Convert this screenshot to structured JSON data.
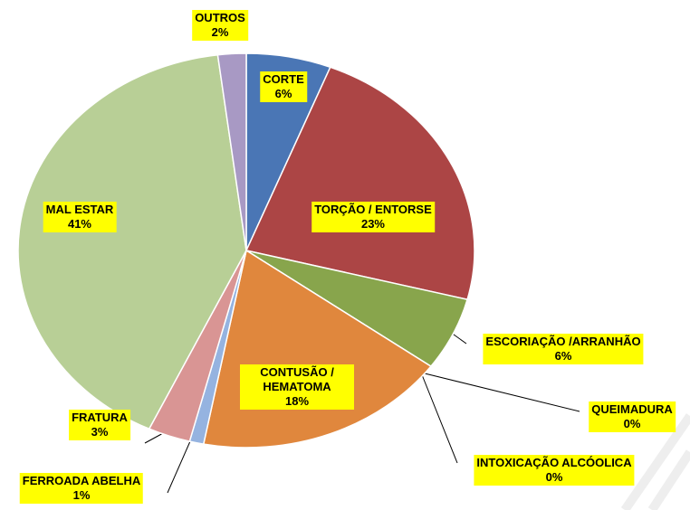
{
  "chart_data": {
    "type": "pie",
    "categories": [
      "CORTE",
      "TORÇÃO / ENTORSE",
      "ESCORIAÇÃO /ARRANHÃO",
      "QUEIMADURA",
      "INTOXICAÇÃO ALCÓOLICA",
      "CONTUSÃO / HEMATOMA",
      "FERROADA ABELHA",
      "FRATURA",
      "MAL ESTAR",
      "OUTROS"
    ],
    "values": [
      6,
      23,
      6,
      0,
      0,
      18,
      1,
      3,
      41,
      2
    ],
    "value_labels": [
      "6%",
      "23%",
      "6%",
      "0%",
      "0%",
      "18%",
      "1%",
      "3%",
      "41%",
      "2%"
    ],
    "colors": [
      "#4a76b5",
      "#ac4545",
      "#88a54c",
      "#7e60a0",
      "#43a3c0",
      "#e0873d",
      "#95b3e0",
      "#d99594",
      "#b8cf96",
      "#a899c4"
    ]
  }
}
